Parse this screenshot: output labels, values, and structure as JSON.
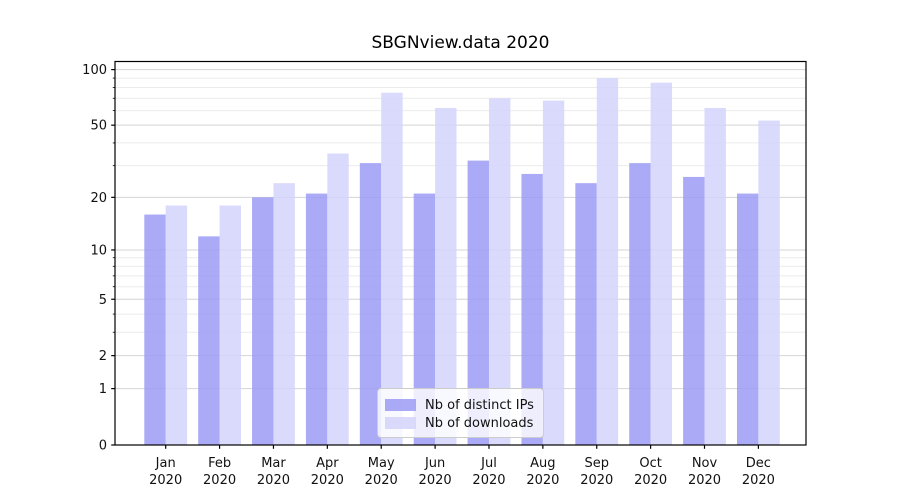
{
  "chart_data": {
    "type": "bar",
    "title": "SBGNview.data 2020",
    "categories": [
      "Jan",
      "Feb",
      "Mar",
      "Apr",
      "May",
      "Jun",
      "Jul",
      "Aug",
      "Sep",
      "Oct",
      "Nov",
      "Dec"
    ],
    "category_year": "2020",
    "series": [
      {
        "name": "Nb of distinct IPs",
        "color": "#9b9bf5",
        "values": [
          16,
          12,
          20,
          21,
          31,
          21,
          32,
          27,
          24,
          31,
          26,
          21
        ]
      },
      {
        "name": "Nb of downloads",
        "color": "#d3d3fb",
        "values": [
          18,
          18,
          24,
          35,
          75,
          62,
          70,
          68,
          90,
          85,
          62,
          53
        ]
      }
    ],
    "xlabel": "",
    "ylabel": "",
    "y_axis": {
      "scale": "log1p",
      "ticks": [
        0,
        1,
        2,
        5,
        10,
        20,
        50,
        100
      ],
      "minor_gridlines": [
        3,
        4,
        6,
        7,
        8,
        9,
        30,
        40,
        60,
        70,
        80,
        90
      ],
      "ylim": [
        0,
        111
      ]
    },
    "grid": true,
    "legend": {
      "position": "lower center"
    }
  }
}
